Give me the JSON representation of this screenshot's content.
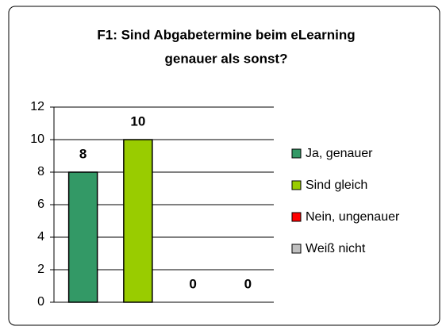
{
  "chart_data": {
    "type": "bar",
    "title": [
      "F1: Sind Abgabetermine beim eLearning",
      "genauer als sonst?"
    ],
    "series": [
      {
        "name": "Ja, genauer",
        "color": "#339966",
        "values": [
          8
        ]
      },
      {
        "name": "Sind gleich",
        "color": "#99cc00",
        "values": [
          10
        ]
      },
      {
        "name": "Nein, ungenauer",
        "color": "#ff0000",
        "values": [
          0
        ]
      },
      {
        "name": "Weiß nicht",
        "color": "#c0c0c0",
        "values": [
          0
        ]
      }
    ],
    "ylim": [
      0,
      12
    ],
    "yticks": [
      0,
      2,
      4,
      6,
      8,
      10,
      12
    ],
    "grid": true,
    "legend": "right"
  }
}
